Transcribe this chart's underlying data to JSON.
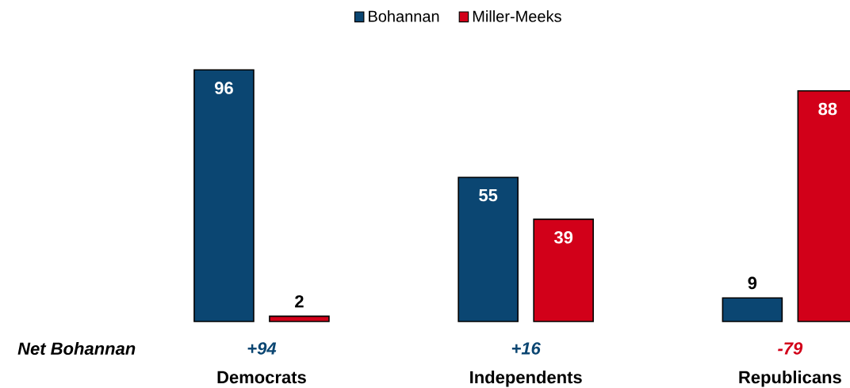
{
  "chart_data": {
    "type": "bar",
    "categories": [
      "Democrats",
      "Independents",
      "Republicans"
    ],
    "series": [
      {
        "name": "Bohannan",
        "color": "#0b4672",
        "values": [
          96,
          55,
          9
        ]
      },
      {
        "name": "Miller-Meeks",
        "color": "#d20019",
        "values": [
          2,
          39,
          88
        ]
      }
    ],
    "data_labels": true,
    "legend": "top",
    "annotations": [
      "Net Bohannan",
      "+94",
      "+16",
      "-79"
    ]
  }
}
